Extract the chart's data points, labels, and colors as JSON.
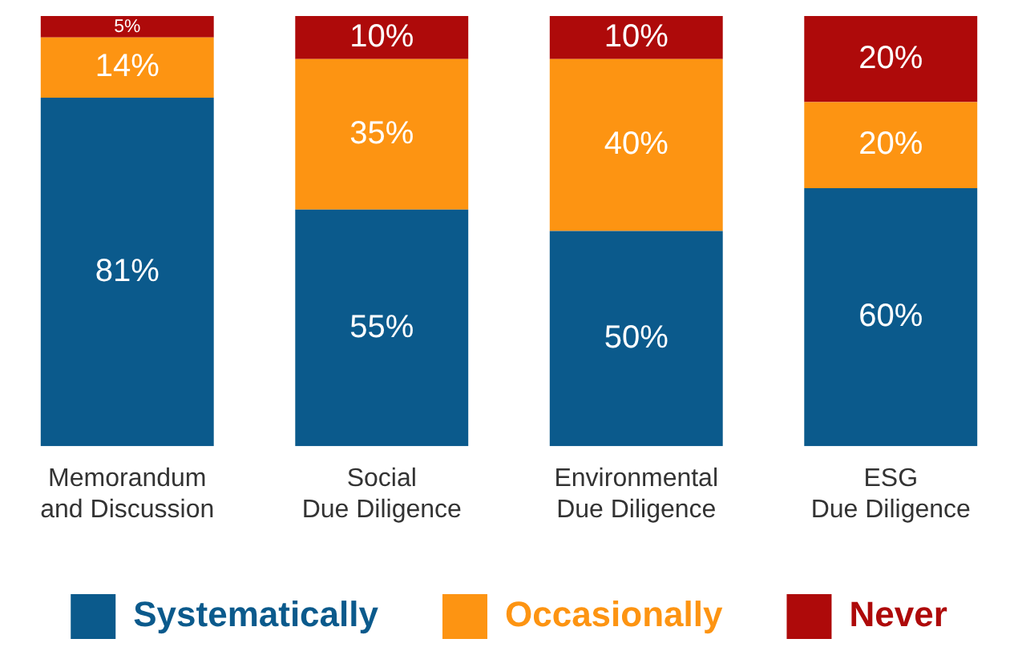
{
  "chart_data": {
    "type": "bar",
    "stacked": true,
    "legend": "bottom",
    "categories": [
      "Memorandum\nand Discussion",
      "Social\nDue Diligence",
      "Environmental\nDue Diligence",
      "ESG\nDue Diligence"
    ],
    "series": [
      {
        "name": "Systematically",
        "color": "#0b5a8c",
        "values": [
          81,
          55,
          50,
          60
        ],
        "value_labels": [
          "81%",
          "55%",
          "50%",
          "60%"
        ]
      },
      {
        "name": "Occasionally",
        "color": "#fd9412",
        "values": [
          14,
          35,
          40,
          20
        ],
        "value_labels": [
          "14%",
          "35%",
          "40%",
          "20%"
        ]
      },
      {
        "name": "Never",
        "color": "#ae0a0a",
        "values": [
          5,
          10,
          10,
          20
        ],
        "value_labels": [
          "5%",
          "10%",
          "10%",
          "20%"
        ]
      }
    ]
  }
}
